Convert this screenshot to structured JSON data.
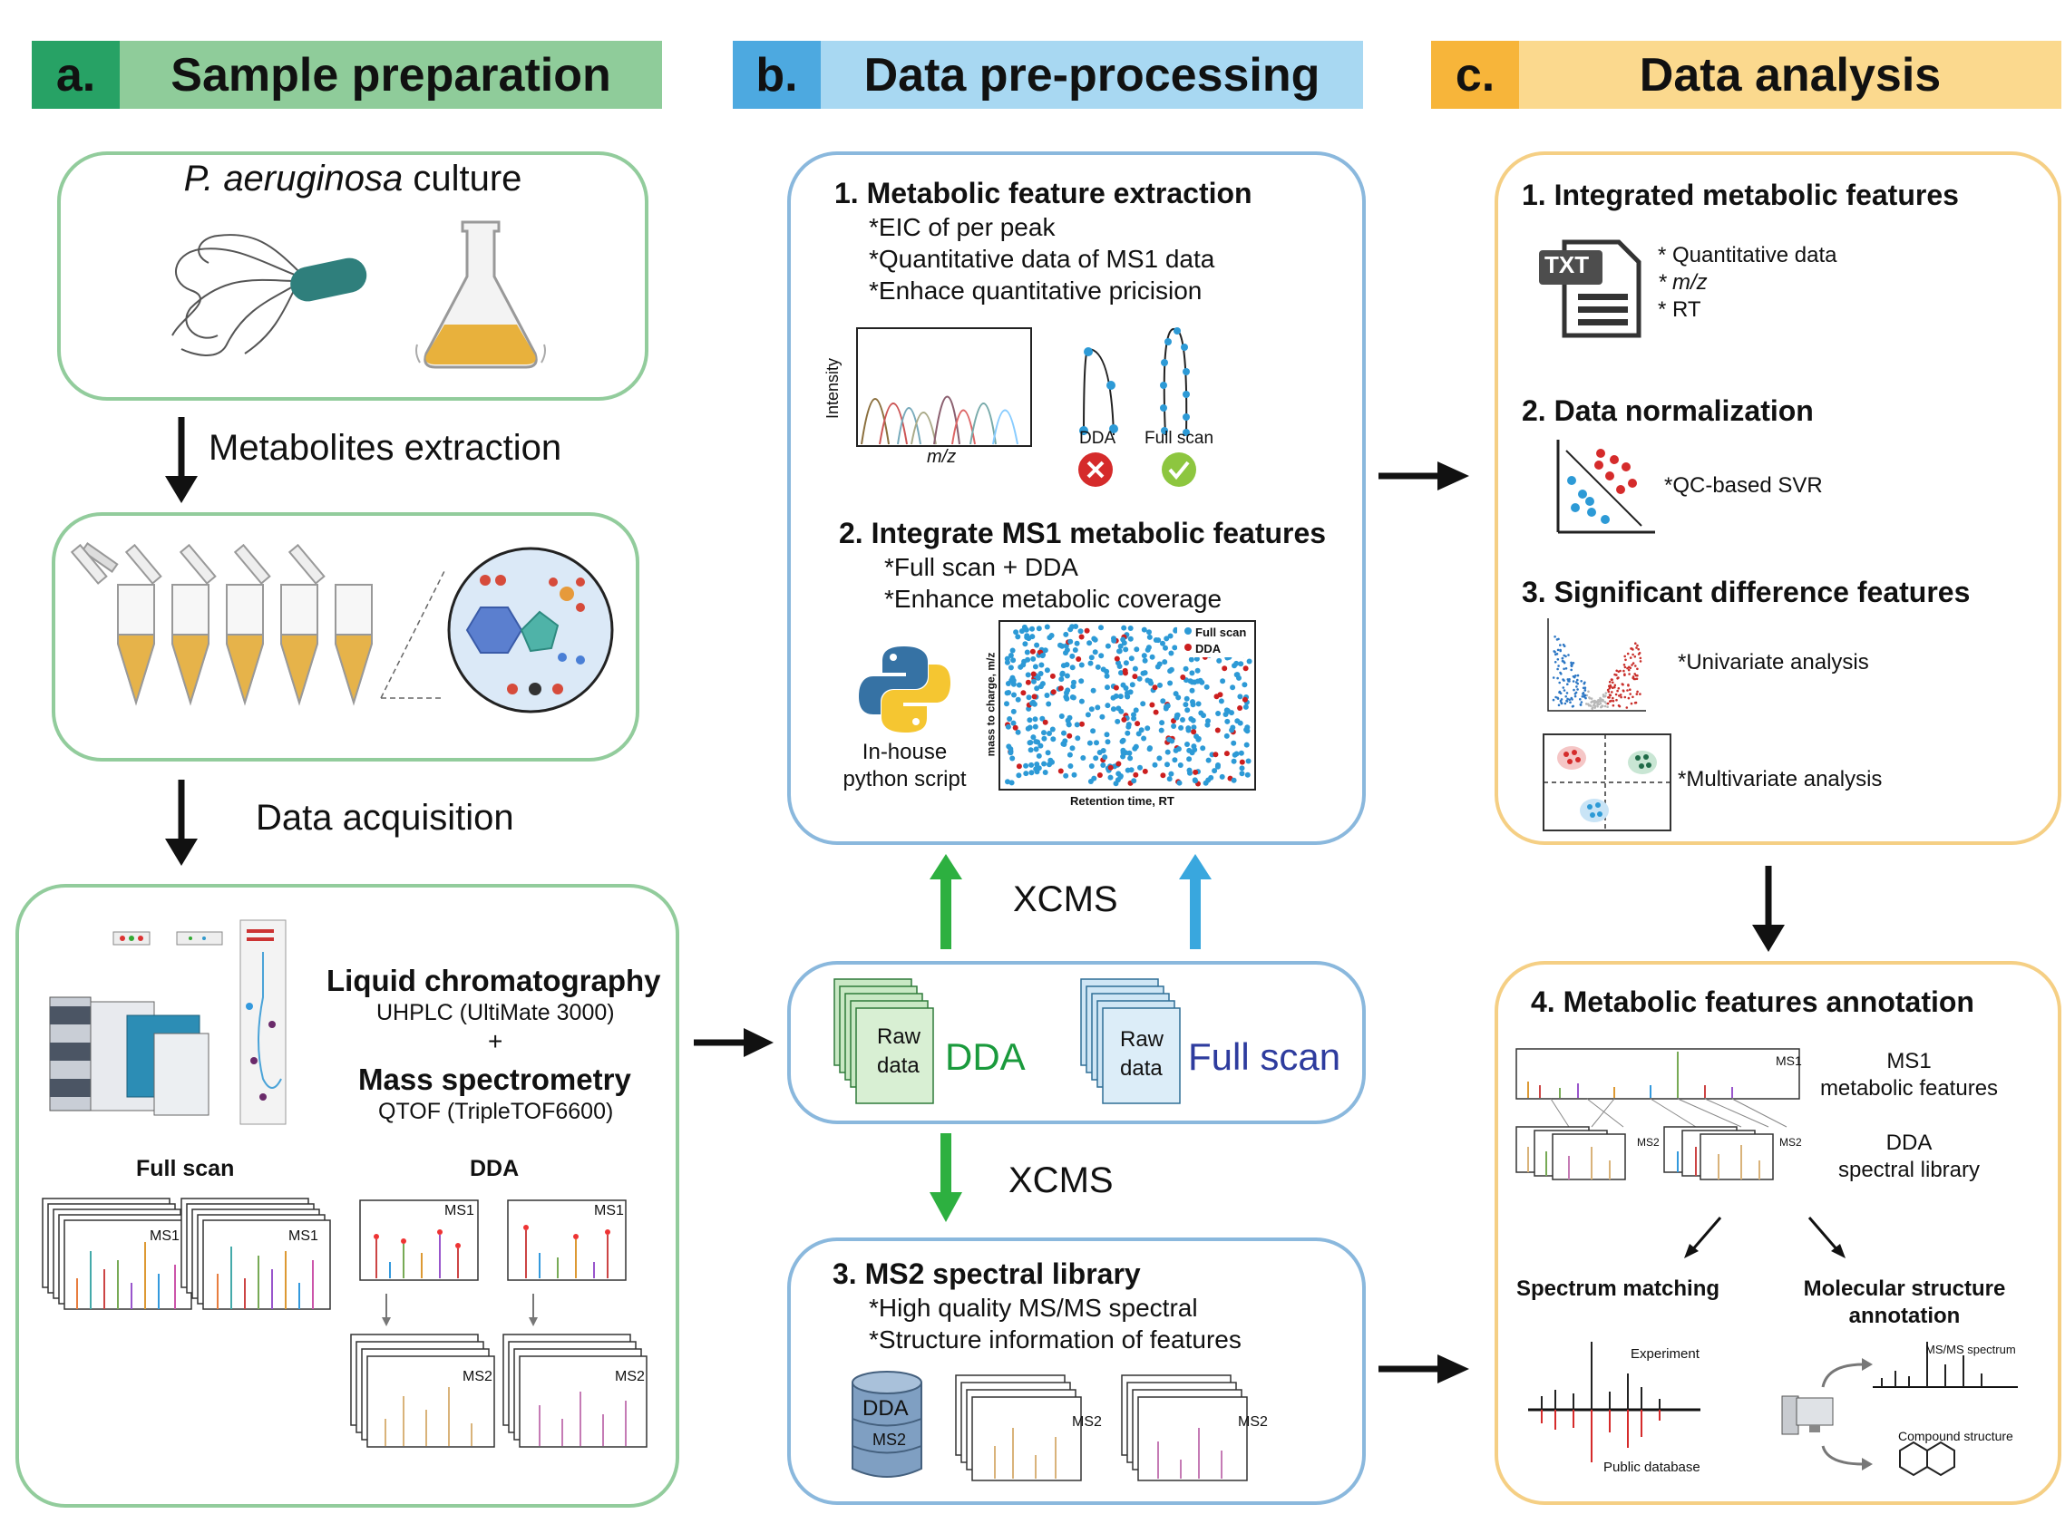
{
  "colors": {
    "green_dark": "#27a265",
    "green_light": "#8fcc9a",
    "blue_dark": "#4da9e0",
    "blue_light": "#a8d8f2",
    "orange_dark": "#f7b53a",
    "orange_light": "#fbd98e",
    "green_border": "#92cc9c",
    "blue_border": "#8ab8dd",
    "orange_border": "#f5cf84",
    "dda_green": "#1a9a3c",
    "fullscan_blue": "#2e3c9e",
    "arrow_green": "#2db040",
    "arrow_blue": "#39a7de",
    "scatter_blue": "#2d9ad6",
    "scatter_red": "#cc1f1f"
  },
  "sections": {
    "a": {
      "letter": "a.",
      "title": "Sample preparation"
    },
    "b": {
      "letter": "b.",
      "title": "Data pre-processing"
    },
    "c": {
      "letter": "c.",
      "title": "Data analysis"
    }
  },
  "panel_a": {
    "culture_species": "P. aeruginosa",
    "culture_word": " culture",
    "step1": "Metabolites extraction",
    "step2": "Data acquisition",
    "lc_title": "Liquid chromatography",
    "lc_sub": "UHPLC (UltiMate 3000)",
    "plus": "+",
    "ms_title": "Mass spectrometry",
    "ms_sub": "QTOF (TripleTOF6600)",
    "fullscan_label": "Full scan",
    "dda_label": "DDA",
    "ms1": "MS1",
    "ms2": "MS2"
  },
  "panel_b": {
    "s1_title": "1. Metabolic feature extraction",
    "s1_items": [
      "*EIC of per peak",
      "*Quantitative data of MS1 data",
      "*Enhace quantitative pricision"
    ],
    "intensity": "Intensity",
    "mz": "m/z",
    "dda": "DDA",
    "fullscan": "Full scan",
    "s2_title": "2. Integrate MS1 metabolic features",
    "s2_items": [
      "*Full scan + DDA",
      "*Enhance metabolic coverage"
    ],
    "script_line1": "In-house",
    "script_line2": "python script",
    "scatter_ylabel": "mass to charge, m/z",
    "scatter_xlabel": "Retention time, RT",
    "legend_fullscan": "Full scan",
    "legend_dda": "DDA",
    "xcms": "XCMS",
    "raw": "Raw",
    "data": "data",
    "raw_dda": "DDA",
    "raw_fullscan": "Full scan",
    "s3_title": "3. MS2 spectral library",
    "s3_items": [
      "*High quality MS/MS spectral",
      "*Structure information of features"
    ],
    "db_dda": "DDA",
    "db_ms2": "MS2",
    "ms2": "MS2"
  },
  "panel_c": {
    "s1_title": "1. Integrated metabolic features",
    "txt_icon": "TXT",
    "s1_items": [
      "* Quantitative data",
      "* m/z",
      "* RT"
    ],
    "s2_title": "2. Data normalization",
    "s2_item": "*QC-based SVR",
    "s3_title": "3. Significant difference features",
    "univariate": "*Univariate analysis",
    "multivariate": "*Multivariate analysis",
    "s4_title": "4. Metabolic features annotation",
    "ms1_line1": "MS1",
    "ms1_line2": "metabolic features",
    "dda_line1": "DDA",
    "dda_line2": "spectral library",
    "ms1_tag": "MS1",
    "ms2_tag": "MS2",
    "spectrum_matching": "Spectrum matching",
    "molecular_line1": "Molecular structure",
    "molecular_line2": "annotation",
    "experiment": "Experiment",
    "public_db": "Public database",
    "msms_spectrum": "MS/MS spectrum",
    "compound_structure": "Compound structure"
  }
}
